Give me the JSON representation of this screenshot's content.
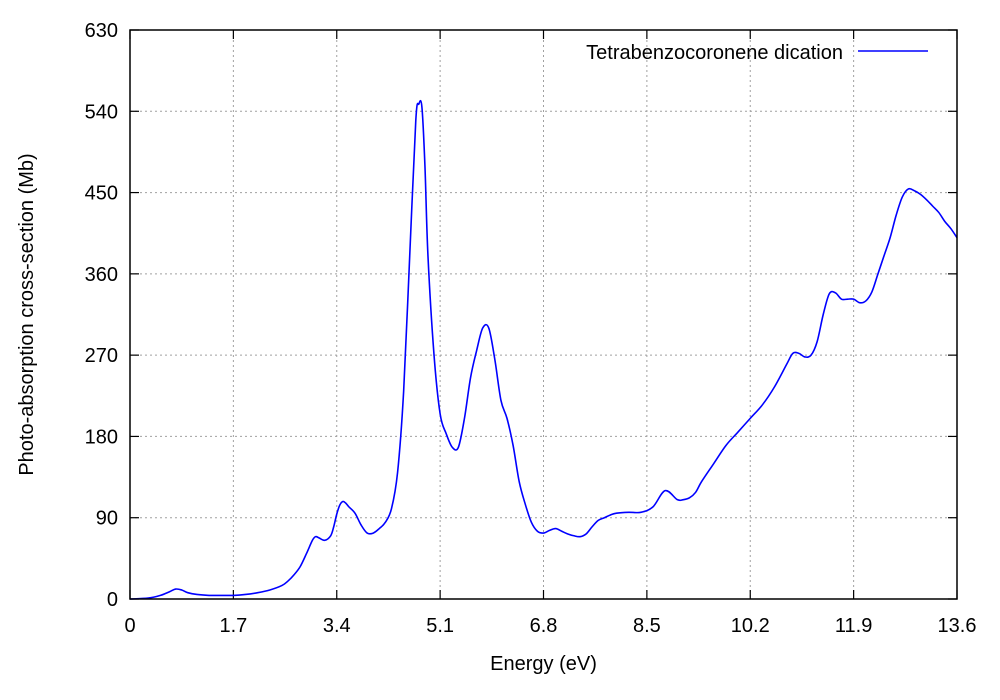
{
  "chart_data": {
    "type": "line",
    "title": "",
    "xlabel": "Energy (eV)",
    "ylabel": "Photo-absorption cross-section (Mb)",
    "xlim": [
      0,
      13.6
    ],
    "ylim": [
      0,
      630
    ],
    "xticks": [
      0,
      1.7,
      3.4,
      5.1,
      6.8,
      8.5,
      10.2,
      11.9,
      13.6
    ],
    "xtick_labels": [
      "0",
      "1.7",
      "3.4",
      "5.1",
      "6.8",
      "8.5",
      "10.2",
      "11.9",
      "13.6"
    ],
    "yticks": [
      0,
      90,
      180,
      270,
      360,
      450,
      540,
      630
    ],
    "ytick_labels": [
      "0",
      "90",
      "180",
      "270",
      "360",
      "450",
      "540",
      "630"
    ],
    "grid": true,
    "legend_position": "top-right",
    "series": [
      {
        "name": "Tetrabenzocoronene dication",
        "color": "#0000ff",
        "x": [
          0,
          0.3,
          0.5,
          0.65,
          0.75,
          0.85,
          0.95,
          1.1,
          1.3,
          1.5,
          1.7,
          1.9,
          2.1,
          2.3,
          2.5,
          2.6,
          2.7,
          2.8,
          2.9,
          3.0,
          3.05,
          3.1,
          3.2,
          3.3,
          3.35,
          3.4,
          3.45,
          3.5,
          3.55,
          3.6,
          3.7,
          3.8,
          3.9,
          4.0,
          4.1,
          4.2,
          4.3,
          4.4,
          4.5,
          4.6,
          4.7,
          4.75,
          4.8,
          4.85,
          4.9,
          5.0,
          5.1,
          5.2,
          5.3,
          5.4,
          5.5,
          5.6,
          5.7,
          5.8,
          5.9,
          6.0,
          6.1,
          6.2,
          6.3,
          6.4,
          6.5,
          6.6,
          6.7,
          6.8,
          6.9,
          7.0,
          7.1,
          7.2,
          7.3,
          7.4,
          7.5,
          7.6,
          7.7,
          7.8,
          7.9,
          8.0,
          8.2,
          8.4,
          8.6,
          8.8,
          9.0,
          9.1,
          9.2,
          9.3,
          9.4,
          9.6,
          9.8,
          10.0,
          10.2,
          10.4,
          10.6,
          10.8,
          10.9,
          11.0,
          11.1,
          11.2,
          11.3,
          11.4,
          11.5,
          11.6,
          11.7,
          11.8,
          11.9,
          12.0,
          12.1,
          12.2,
          12.3,
          12.4,
          12.5,
          12.6,
          12.7,
          12.8,
          12.9,
          13.0,
          13.1,
          13.2,
          13.3,
          13.4,
          13.5,
          13.6
        ],
        "values": [
          0,
          1,
          4,
          8,
          11,
          10,
          7,
          5,
          4,
          4,
          4,
          5,
          7,
          10,
          15,
          20,
          27,
          36,
          50,
          65,
          69,
          68,
          65,
          70,
          80,
          94,
          104,
          108,
          106,
          102,
          95,
          82,
          73,
          73,
          78,
          85,
          100,
          140,
          230,
          380,
          530,
          548,
          545,
          480,
          380,
          270,
          205,
          183,
          168,
          168,
          200,
          245,
          275,
          300,
          300,
          265,
          220,
          200,
          170,
          130,
          105,
          85,
          75,
          73,
          76,
          78,
          75,
          72,
          70,
          69,
          72,
          80,
          87,
          90,
          93,
          95,
          96,
          96,
          102,
          120,
          110,
          110,
          112,
          118,
          130,
          150,
          170,
          185,
          200,
          215,
          235,
          260,
          272,
          272,
          268,
          270,
          285,
          315,
          338,
          339,
          332,
          332,
          332,
          328,
          330,
          340,
          360,
          380,
          400,
          425,
          445,
          454,
          452,
          448,
          442,
          435,
          428,
          418,
          410,
          400
        ]
      }
    ]
  }
}
